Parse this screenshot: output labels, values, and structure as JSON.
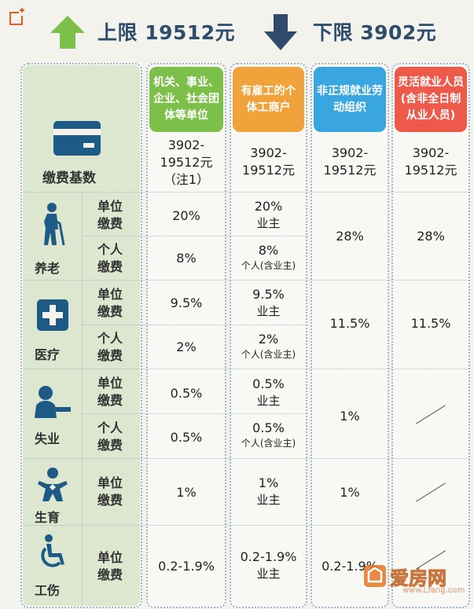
{
  "limits": {
    "upper": "上限 19512元",
    "lower": "下限 3902元"
  },
  "headers": [
    "机关、事业、企业、社会团体等单位",
    "有雇工的个体工商户",
    "非正规就业劳动组织",
    "灵活就业人员(含非全日制从业人员)"
  ],
  "base": {
    "label": "缴费基数",
    "values": [
      [
        "3902-",
        "19512元",
        "（注1）"
      ],
      [
        "3902-",
        "19512元"
      ],
      [
        "3902-",
        "19512元"
      ],
      [
        "3902-",
        "19512元"
      ]
    ]
  },
  "categories": {
    "pension": "养老",
    "medical": "医疗",
    "unemployment": "失业",
    "maternity": "生育",
    "injury": "工伤"
  },
  "sub_labels": {
    "unit": [
      "单位",
      "缴费"
    ],
    "personal": [
      "个人",
      "缴费"
    ]
  },
  "rates": {
    "pension_unit": "20%",
    "pension_personal": "8%",
    "medical_unit": "9.5%",
    "medical_personal": "2%",
    "unemp_unit": "0.5%",
    "unemp_personal": "0.5%",
    "maternity_unit": "1%",
    "injury_unit": "0.2-1.9%",
    "owner_note": "业主",
    "personal_owner_note": "个人(含业主)",
    "col3_pension": "28%",
    "col3_medical": "11.5%",
    "col3_unemp": "1%",
    "col3_maternity": "1%",
    "col3_injury": "0.2-1.9%",
    "col4_pension": "28%",
    "col4_medical": "11.5%"
  },
  "watermark": {
    "brand": "爱房网",
    "url": "www.Lfang.com"
  },
  "colors": {
    "green": "#7cc04a",
    "orange": "#f0a33b",
    "blue": "#39a6e0",
    "red": "#ee5a4a",
    "navy": "#2e4d6b"
  }
}
